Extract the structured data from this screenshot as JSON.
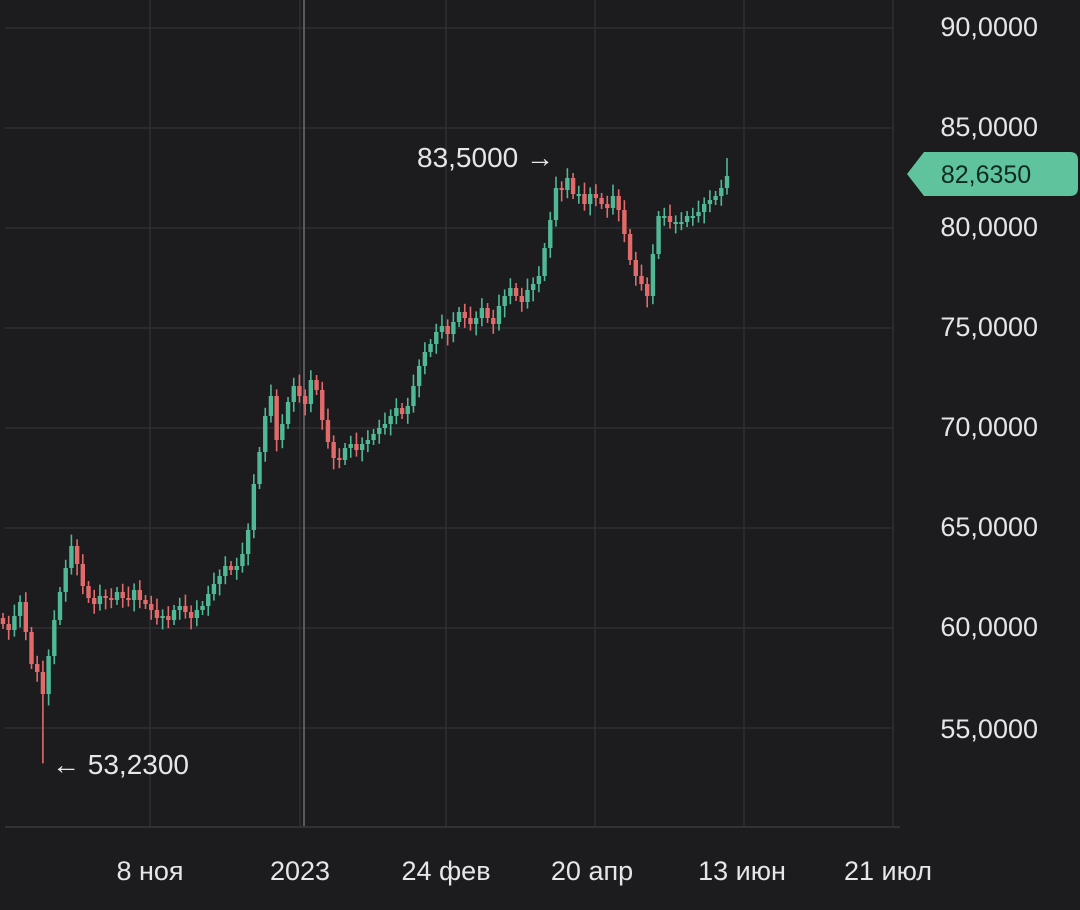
{
  "colors": {
    "background": "#1c1c1e",
    "up": "#4fb894",
    "down": "#e26a6a",
    "price_tag": "#5fc49e"
  },
  "chart_data": {
    "type": "candlestick",
    "title": "",
    "xlabel": "",
    "ylabel": "",
    "ylim": [
      50.0,
      91.0
    ],
    "grid": true,
    "y_ticks": [
      "90,0000",
      "85,0000",
      "80,0000",
      "75,0000",
      "70,0000",
      "65,0000",
      "60,0000",
      "55,0000"
    ],
    "y_tick_values": [
      90,
      85,
      80,
      75,
      70,
      65,
      60,
      55
    ],
    "x_ticks": [
      "8 ноя",
      "2023",
      "24 фев",
      "20 апр",
      "13 июн",
      "21 июл"
    ],
    "current_price": "82,6350",
    "current_price_value": 82.635,
    "annotations": {
      "max_label": "83,5000 →",
      "max_value": 83.5,
      "min_label": "← 53,2300",
      "min_value": 53.23
    },
    "closes": [
      60.2,
      59.9,
      60.6,
      61.3,
      59.8,
      58.2,
      57.8,
      56.7,
      58.6,
      60.4,
      61.8,
      63.0,
      64.1,
      63.2,
      62.1,
      61.5,
      61.2,
      61.6,
      61.5,
      61.4,
      61.8,
      61.5,
      61.4,
      61.9,
      61.4,
      61.2,
      60.9,
      60.5,
      60.6,
      60.4,
      60.9,
      61.1,
      60.8,
      60.5,
      60.9,
      61.1,
      61.7,
      62.2,
      62.6,
      63.1,
      62.9,
      63.1,
      63.7,
      64.9,
      67.2,
      68.8,
      70.6,
      71.6,
      69.4,
      70.2,
      71.3,
      72.1,
      71.6,
      71.2,
      72.4,
      71.9,
      70.4,
      69.3,
      68.5,
      68.4,
      69.0,
      69.2,
      68.9,
      69.2,
      69.4,
      69.7,
      70.0,
      70.2,
      70.6,
      71.0,
      70.7,
      71.1,
      72.1,
      73.1,
      73.8,
      74.2,
      74.8,
      75.1,
      74.7,
      75.3,
      75.8,
      75.5,
      75.2,
      75.5,
      76.0,
      75.5,
      75.2,
      76.1,
      76.6,
      77.0,
      76.6,
      76.3,
      76.9,
      77.2,
      77.6,
      79.0,
      80.4,
      82.0,
      81.9,
      82.5,
      81.7,
      81.7,
      81.2,
      81.7,
      81.5,
      81.2,
      81.0,
      81.6,
      80.9,
      79.7,
      78.4,
      77.6,
      77.2,
      76.6,
      78.7,
      80.6,
      80.6,
      80.3,
      80.3,
      80.3,
      80.6,
      80.6,
      80.8,
      81.2,
      81.4,
      81.6,
      82.0,
      82.6
    ]
  }
}
